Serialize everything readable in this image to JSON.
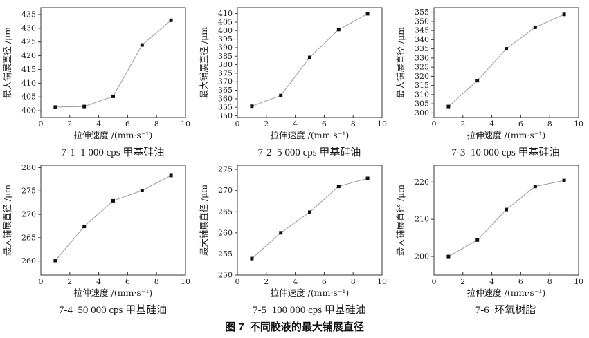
{
  "figure_caption": "图 7  不同胶液的最大铺展直径",
  "style": {
    "background": "#ffffff",
    "axis_color": "#333333",
    "tick_text_color": "#222222",
    "line_color": "#9a9a9a",
    "marker_color": "#111111"
  },
  "chart_data": [
    {
      "type": "line",
      "id": "7-1",
      "caption": "7-1  1 000 cps 甲基硅油",
      "xlabel": "拉伸速度 /(mm·s⁻¹)",
      "ylabel": "最大铺展直径 /μm",
      "x": [
        1,
        3,
        5,
        7,
        9
      ],
      "values": [
        401.3,
        401.5,
        405.2,
        423.9,
        432.9
      ],
      "xlim": [
        0,
        10
      ],
      "xticks": [
        0,
        2,
        4,
        6,
        8,
        10
      ],
      "ylim": [
        397.5,
        437.5
      ],
      "yticks": [
        400,
        405,
        410,
        415,
        420,
        425,
        430,
        435
      ],
      "marker": "square",
      "legend": "none",
      "grid": "off"
    },
    {
      "type": "line",
      "id": "7-2",
      "caption": "7-2  5 000 cps 甲基硅油",
      "xlabel": "拉伸速度 /(mm·s⁻¹)",
      "ylabel": "最大铺展直径 /μm",
      "x": [
        1,
        3,
        5,
        7,
        9
      ],
      "values": [
        355.6,
        361.9,
        384.3,
        400.6,
        409.9
      ],
      "xlim": [
        0,
        10
      ],
      "xticks": [
        0,
        2,
        4,
        6,
        8,
        10
      ],
      "ylim": [
        349,
        413.5
      ],
      "yticks": [
        350,
        355,
        360,
        365,
        370,
        375,
        380,
        385,
        390,
        395,
        400,
        405,
        410
      ],
      "marker": "square",
      "legend": "none",
      "grid": "off"
    },
    {
      "type": "line",
      "id": "7-3",
      "caption": "7-3  10 000 cps 甲基硅油",
      "xlabel": "拉伸速度 /(mm·s⁻¹)",
      "ylabel": "最大铺展直径 /μm",
      "x": [
        1,
        3,
        5,
        7,
        9
      ],
      "values": [
        303.5,
        317.6,
        335.0,
        346.8,
        353.8
      ],
      "xlim": [
        0,
        10
      ],
      "xticks": [
        0,
        2,
        4,
        6,
        8,
        10
      ],
      "ylim": [
        297.5,
        357.5
      ],
      "yticks": [
        300,
        305,
        310,
        315,
        320,
        325,
        330,
        335,
        340,
        345,
        350,
        355
      ],
      "marker": "square",
      "legend": "none",
      "grid": "off"
    },
    {
      "type": "line",
      "id": "7-4",
      "caption": "7-4  50 000 cps 甲基硅油",
      "xlabel": "拉伸速度 /(mm·s⁻¹)",
      "ylabel": "最大铺展直径 /μm",
      "x": [
        1,
        3,
        5,
        7,
        9
      ],
      "values": [
        260.1,
        267.4,
        272.9,
        275.1,
        278.3
      ],
      "xlim": [
        0,
        10
      ],
      "xticks": [
        0,
        2,
        4,
        6,
        8,
        10
      ],
      "ylim": [
        257,
        280.5
      ],
      "yticks": [
        260,
        265,
        270,
        275,
        280
      ],
      "marker": "square",
      "legend": "none",
      "grid": "off"
    },
    {
      "type": "line",
      "id": "7-5",
      "caption": "7-5  100 000 cps 甲基硅油",
      "xlabel": "拉伸速度 /(mm·s⁻¹)",
      "ylabel": "最大铺展直径 /μm",
      "x": [
        1,
        3,
        5,
        7,
        9
      ],
      "values": [
        253.9,
        260.0,
        264.9,
        271.0,
        272.9
      ],
      "xlim": [
        0,
        10
      ],
      "xticks": [
        0,
        2,
        4,
        6,
        8,
        10
      ],
      "ylim": [
        250,
        276
      ],
      "yticks": [
        250,
        255,
        260,
        265,
        270,
        275
      ],
      "marker": "square",
      "legend": "none",
      "grid": "off"
    },
    {
      "type": "line",
      "id": "7-6",
      "caption": "7-6  环氧树脂",
      "xlabel": "拉伸速度 /(mm·s⁻¹)",
      "ylabel": "最大铺展直径 /μm",
      "x": [
        1,
        3,
        5,
        7,
        9
      ],
      "values": [
        200.0,
        204.4,
        212.6,
        218.8,
        220.4
      ],
      "xlim": [
        0,
        10
      ],
      "xticks": [
        0,
        2,
        4,
        6,
        8,
        10
      ],
      "ylim": [
        195,
        224.5
      ],
      "yticks": [
        200,
        210,
        220
      ],
      "marker": "square",
      "legend": "none",
      "grid": "off"
    }
  ]
}
